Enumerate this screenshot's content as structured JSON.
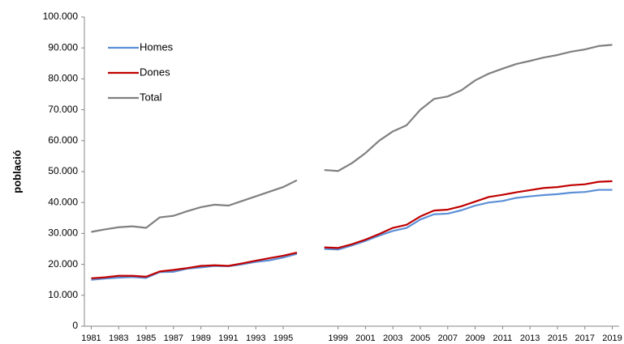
{
  "chart_data": {
    "type": "line",
    "y_label": "població",
    "x": [
      1981,
      1982,
      1983,
      1984,
      1985,
      1986,
      1987,
      1988,
      1989,
      1990,
      1991,
      1992,
      1993,
      1994,
      1995,
      1996,
      1997,
      1998,
      1999,
      2000,
      2001,
      2002,
      2003,
      2004,
      2005,
      2006,
      2007,
      2008,
      2009,
      2010,
      2011,
      2012,
      2013,
      2014,
      2015,
      2016,
      2017,
      2018,
      2019
    ],
    "xlim": [
      1980.5,
      2019.5
    ],
    "xticks": [
      1981,
      1983,
      1985,
      1987,
      1989,
      1991,
      1993,
      1995,
      1999,
      2001,
      2003,
      2005,
      2007,
      2009,
      2011,
      2013,
      2015,
      2017,
      2019
    ],
    "ylim": [
      0,
      100000
    ],
    "yticks": [
      0,
      {
        "value": 10000,
        "label": "10.000"
      },
      {
        "value": 20000,
        "label": "20.000"
      },
      {
        "value": 30000,
        "label": "30.000"
      },
      {
        "value": 40000,
        "label": "40.000"
      },
      {
        "value": 50000,
        "label": "50.000"
      },
      {
        "value": 60000,
        "label": "60.000"
      },
      {
        "value": 70000,
        "label": "70.000"
      },
      {
        "value": 80000,
        "label": "80.000"
      },
      {
        "value": 90000,
        "label": "90.000"
      },
      {
        "value": 100000,
        "label": "100.000"
      }
    ],
    "grid": false,
    "legend": "top-left",
    "series": [
      {
        "name": "Homes",
        "color": "#5b8fd6",
        "values": [
          15000,
          15400,
          15700,
          15900,
          15600,
          17500,
          17600,
          18600,
          19000,
          19500,
          19400,
          20000,
          20800,
          21300,
          22200,
          23400,
          null,
          25000,
          24800,
          26100,
          27600,
          29300,
          30800,
          31800,
          34500,
          36200,
          36400,
          37500,
          39000,
          40000,
          40500,
          41500,
          42000,
          42400,
          42700,
          43200,
          43400,
          44100,
          44100
        ]
      },
      {
        "name": "Dones",
        "color": "#c00000",
        "values": [
          15500,
          15800,
          16300,
          16300,
          16000,
          17700,
          18200,
          18800,
          19500,
          19700,
          19500,
          20300,
          21200,
          22000,
          22800,
          23800,
          null,
          25500,
          25300,
          26500,
          28000,
          29800,
          31800,
          32800,
          35500,
          37400,
          37700,
          38800,
          40300,
          41800,
          42500,
          43300,
          44000,
          44700,
          45000,
          45600,
          45900,
          46700,
          46900
        ]
      },
      {
        "name": "Total",
        "color": "#808080",
        "values": [
          30500,
          31300,
          32000,
          32300,
          31800,
          35200,
          35700,
          37200,
          38500,
          39300,
          39000,
          40500,
          42000,
          43500,
          45000,
          47200,
          null,
          50500,
          50200,
          52700,
          56000,
          60000,
          63000,
          65000,
          70000,
          73500,
          74300,
          76300,
          79500,
          81700,
          83300,
          84800,
          85800,
          86900,
          87700,
          88800,
          89500,
          90600,
          91000
        ]
      }
    ]
  }
}
